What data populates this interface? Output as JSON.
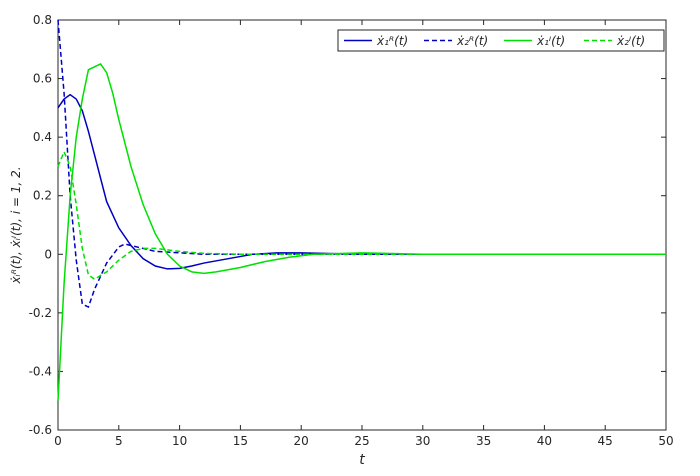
{
  "chart_data": {
    "type": "line",
    "xlabel": "t",
    "ylabel": "ẋᵢᴿ(t), ẋᵢᴵ(t), i = 1, 2.",
    "xlim": [
      0,
      50
    ],
    "ylim": [
      -0.6,
      0.8
    ],
    "xticks": [
      0,
      5,
      10,
      15,
      20,
      25,
      30,
      35,
      40,
      45,
      50
    ],
    "yticks": [
      -0.6,
      -0.4,
      -0.2,
      0,
      0.2,
      0.4,
      0.6,
      0.8
    ],
    "legend": "top-right",
    "series": [
      {
        "name": "ẋ₁ᴿ(t)",
        "color": "#0000c0",
        "dash": false,
        "x": [
          0,
          0.5,
          1,
          1.5,
          2,
          2.5,
          3,
          3.5,
          4,
          5,
          6,
          7,
          8,
          9,
          10,
          11,
          12,
          14,
          16,
          18,
          20,
          25,
          30,
          50
        ],
        "values": [
          0.5,
          0.53,
          0.545,
          0.53,
          0.49,
          0.42,
          0.34,
          0.26,
          0.18,
          0.09,
          0.03,
          -0.015,
          -0.04,
          -0.05,
          -0.048,
          -0.04,
          -0.03,
          -0.015,
          0,
          0.005,
          0.005,
          0,
          0,
          0
        ]
      },
      {
        "name": "ẋ₂ᴿ(t)",
        "color": "#0000c0",
        "dash": true,
        "x": [
          0,
          0.5,
          1,
          1.5,
          2,
          2.5,
          3,
          4,
          5,
          5.5,
          6,
          7,
          8,
          10,
          12,
          15,
          20,
          50
        ],
        "values": [
          0.8,
          0.55,
          0.2,
          -0.02,
          -0.17,
          -0.18,
          -0.12,
          -0.03,
          0.025,
          0.035,
          0.03,
          0.02,
          0.01,
          0.005,
          0,
          0,
          0,
          0
        ]
      },
      {
        "name": "ẋ₁ᴵ(t)",
        "color": "#00e000",
        "dash": false,
        "x": [
          0,
          0.5,
          1,
          1.5,
          2,
          2.5,
          3,
          3.5,
          4,
          4.5,
          5,
          6,
          7,
          8,
          9,
          10,
          11,
          12,
          13,
          15,
          17,
          19,
          21,
          25,
          30,
          50
        ],
        "values": [
          -0.5,
          -0.1,
          0.2,
          0.4,
          0.53,
          0.63,
          0.64,
          0.65,
          0.62,
          0.55,
          0.46,
          0.3,
          0.17,
          0.07,
          0,
          -0.04,
          -0.06,
          -0.065,
          -0.06,
          -0.045,
          -0.025,
          -0.01,
          0,
          0.005,
          0,
          0
        ]
      },
      {
        "name": "ẋ₂ᴵ(t)",
        "color": "#00e000",
        "dash": true,
        "x": [
          0,
          0.5,
          1,
          1.5,
          2,
          2.5,
          3,
          4,
          5,
          6,
          7,
          8,
          10,
          12,
          15,
          50
        ],
        "values": [
          0.3,
          0.35,
          0.3,
          0.17,
          0.02,
          -0.07,
          -0.085,
          -0.06,
          -0.02,
          0.01,
          0.02,
          0.02,
          0.01,
          0.003,
          0,
          0
        ]
      }
    ]
  }
}
